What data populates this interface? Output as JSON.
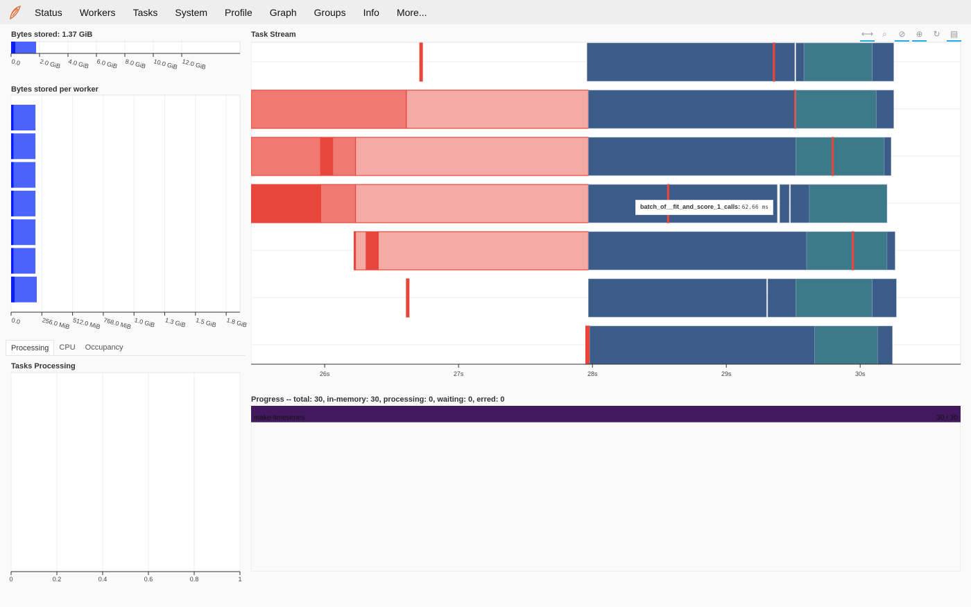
{
  "nav": {
    "items": [
      "Status",
      "Workers",
      "Tasks",
      "System",
      "Profile",
      "Graph",
      "Groups",
      "Info",
      "More..."
    ]
  },
  "bytes_stored": {
    "title": "Bytes stored: 1.37 GiB",
    "ticks": [
      "0.0",
      "2.0 GiB",
      "4.0 GiB",
      "6.0 GiB",
      "8.0 GiB",
      "10.0 GiB",
      "12.0 GiB"
    ],
    "value_gib": 1.37,
    "xlim_gib": [
      0,
      13
    ]
  },
  "bytes_per_worker": {
    "title": "Bytes stored per worker",
    "ticks": [
      "0.0",
      "256.0 MiB",
      "512.0 MiB",
      "768.0 MiB",
      "1.0 GiB",
      "1.3 GiB",
      "1.5 GiB",
      "1.8 GiB"
    ],
    "values_mib": [
      203,
      203,
      203,
      203,
      203,
      203,
      214
    ],
    "dark_mib": [
      20,
      20,
      20,
      20,
      20,
      20,
      29
    ]
  },
  "tabs": [
    "Processing",
    "CPU",
    "Occupancy"
  ],
  "processing": {
    "title": "Tasks Processing",
    "ticks": [
      "0",
      "0.2",
      "0.4",
      "0.6",
      "0.8",
      "1"
    ]
  },
  "task_stream": {
    "title": "Task Stream",
    "ticks": [
      "26s",
      "27s",
      "28s",
      "29s",
      "30s"
    ],
    "xlim_s": [
      25.45,
      30.75
    ],
    "tools": [
      "pan-icon",
      "box-zoom-icon",
      "wheel-zoom-icon",
      "zoom-in-icon",
      "reset-icon",
      "hover-icon"
    ],
    "colors": {
      "red": "#e8463b",
      "medium": "#f07a72",
      "light": "#f4aba5",
      "blue": "#3b5b88",
      "teal": "#3c7a8a"
    },
    "rows": [
      [
        [
          26.71,
          26.73,
          "red"
        ],
        [
          27.96,
          29.51,
          "blue"
        ],
        [
          29.35,
          29.36,
          "red"
        ],
        [
          29.52,
          29.58,
          "blue"
        ],
        [
          29.58,
          30.09,
          "teal"
        ],
        [
          30.09,
          30.25,
          "blue"
        ]
      ],
      [
        [
          25.45,
          26.61,
          "medium"
        ],
        [
          26.61,
          27.97,
          "light"
        ],
        [
          27.97,
          29.51,
          "blue"
        ],
        [
          29.51,
          29.52,
          "red"
        ],
        [
          29.52,
          30.12,
          "teal"
        ],
        [
          30.12,
          30.25,
          "blue"
        ]
      ],
      [
        [
          25.45,
          25.97,
          "medium"
        ],
        [
          25.97,
          26.06,
          "red"
        ],
        [
          26.06,
          26.23,
          "medium"
        ],
        [
          26.23,
          27.97,
          "light"
        ],
        [
          27.97,
          29.52,
          "blue"
        ],
        [
          29.52,
          30.18,
          "teal"
        ],
        [
          29.79,
          29.8,
          "red"
        ],
        [
          30.18,
          30.23,
          "blue"
        ]
      ],
      [
        [
          25.45,
          25.97,
          "red"
        ],
        [
          25.97,
          26.23,
          "medium"
        ],
        [
          26.23,
          27.97,
          "light"
        ],
        [
          27.97,
          29.38,
          "blue"
        ],
        [
          28.56,
          28.57,
          "red"
        ],
        [
          29.4,
          29.47,
          "blue"
        ],
        [
          29.48,
          29.62,
          "blue"
        ],
        [
          29.62,
          30.2,
          "teal"
        ]
      ],
      [
        [
          26.22,
          26.23,
          "red"
        ],
        [
          26.23,
          26.31,
          "light"
        ],
        [
          26.31,
          26.4,
          "red"
        ],
        [
          26.4,
          27.97,
          "light"
        ],
        [
          27.97,
          29.6,
          "blue"
        ],
        [
          29.6,
          30.2,
          "teal"
        ],
        [
          29.94,
          29.95,
          "red"
        ],
        [
          30.2,
          30.26,
          "blue"
        ]
      ],
      [
        [
          26.61,
          26.63,
          "red"
        ],
        [
          27.97,
          29.3,
          "blue"
        ],
        [
          29.31,
          29.52,
          "blue"
        ],
        [
          29.52,
          30.09,
          "teal"
        ],
        [
          30.09,
          30.27,
          "blue"
        ]
      ],
      [
        [
          27.95,
          27.98,
          "red"
        ],
        [
          27.98,
          29.66,
          "blue"
        ],
        [
          29.66,
          30.13,
          "teal"
        ],
        [
          30.13,
          30.24,
          "blue"
        ]
      ]
    ],
    "tooltip": {
      "label": "batch_of__fit_and_score_1_calls:",
      "value": "62.66 ms"
    }
  },
  "progress": {
    "title": "Progress -- total: 30, in-memory: 30, processing: 0, waiting: 0, erred: 0",
    "name": "make-timeseries",
    "count": "30 / 30",
    "fraction": 1.0,
    "color": "#43195e"
  }
}
